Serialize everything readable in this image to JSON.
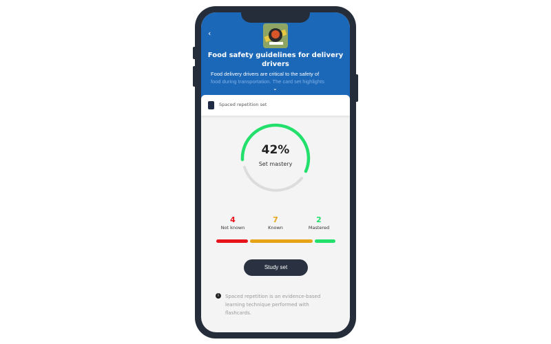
{
  "header": {
    "back_icon": "chevron-left-icon",
    "title": "Food safety guidelines for delivery drivers",
    "description_visible": "Food delivery drivers are critical to the safety of",
    "description_faded": "food during transportation. The card set highlights",
    "expand_icon": "chevron-down-icon"
  },
  "set_card": {
    "icon": "flashcard-deck-icon",
    "label": "Spaced repetition set"
  },
  "mastery": {
    "percent_label": "42%",
    "percent": 42,
    "label": "Set mastery",
    "color": "#22e06b",
    "track_color": "#dcdcdc"
  },
  "stats": [
    {
      "count": "4",
      "label": "Not known",
      "color": "#e8141b"
    },
    {
      "count": "7",
      "label": "Known",
      "color": "#e6a317"
    },
    {
      "count": "2",
      "label": "Mastered",
      "color": "#22e06b"
    }
  ],
  "study_button": "Study set",
  "info": {
    "icon": "info-icon",
    "text": "Spaced repetition is an evidence-based learning technique performed with flashcards."
  }
}
